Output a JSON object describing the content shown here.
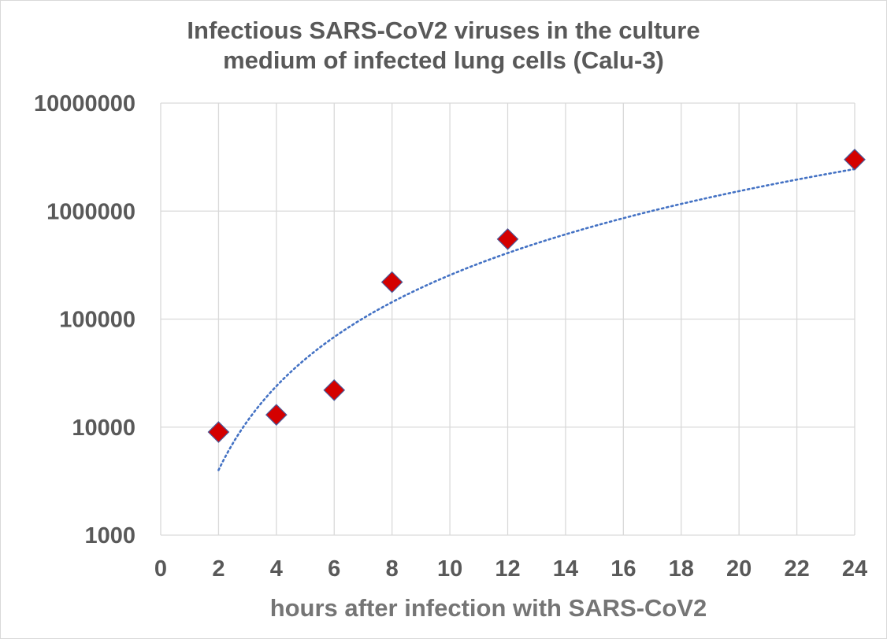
{
  "chart_data": {
    "type": "scatter",
    "title_lines": [
      "Infectious SARS-CoV2 viruses in the culture",
      "medium of infected lung cells (Calu-3)"
    ],
    "xlabel": "hours after infection with SARS-CoV2",
    "ylabel": "",
    "xlim": [
      0,
      24
    ],
    "ylim": [
      1000,
      10000000
    ],
    "y_scale": "log",
    "x_ticks": [
      "0",
      "2",
      "4",
      "6",
      "8",
      "10",
      "12",
      "14",
      "16",
      "18",
      "20",
      "22",
      "24"
    ],
    "y_ticks": [
      "1000",
      "10000",
      "100000",
      "1000000",
      "10000000"
    ],
    "grid": true,
    "legend": "none",
    "series": [
      {
        "marker": "diamond",
        "color": "#d40000",
        "edge_color": "#4a5a9a",
        "points": [
          {
            "x": 2,
            "y": 9000
          },
          {
            "x": 4,
            "y": 13000
          },
          {
            "x": 6,
            "y": 22000
          },
          {
            "x": 8,
            "y": 220000
          },
          {
            "x": 12,
            "y": 550000
          },
          {
            "x": 24,
            "y": 3000000
          }
        ]
      }
    ],
    "trendline": {
      "type": "dotted",
      "color": "#4472c4",
      "x_range": [
        2,
        24
      ],
      "y_start": 4000,
      "y_end": 2450000
    }
  }
}
